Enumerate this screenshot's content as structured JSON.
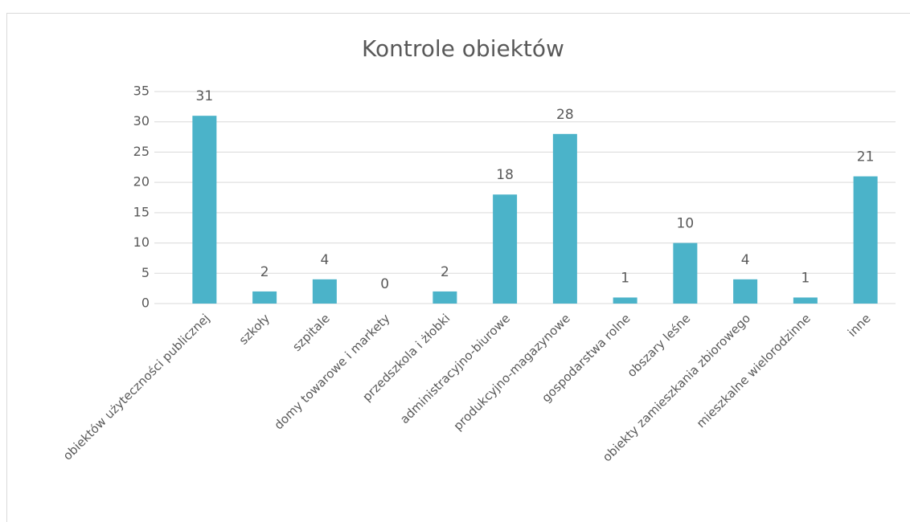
{
  "chart_data": {
    "type": "bar",
    "title": "Kontrole obiektów",
    "categories": [
      "obiektów użyteczności publicznej",
      "szkoły",
      "szpitale",
      "domy towarowe i markety",
      "przedszkola i żłobki",
      "administracyjno-biurowe",
      "produkcyjno-magazynowe",
      "gospodarstwa rolne",
      "obszary leśne",
      "obiekty zamieszkania zbiorowego",
      "mieszkalne wielorodzinne",
      "inne"
    ],
    "values": [
      31,
      2,
      4,
      0,
      2,
      18,
      28,
      1,
      10,
      4,
      1,
      21
    ],
    "color": "#4bb3c9",
    "ylim": [
      0,
      35
    ],
    "yticks": [
      0,
      5,
      10,
      15,
      20,
      25,
      30,
      35
    ],
    "grid": true,
    "data_labels": true
  }
}
